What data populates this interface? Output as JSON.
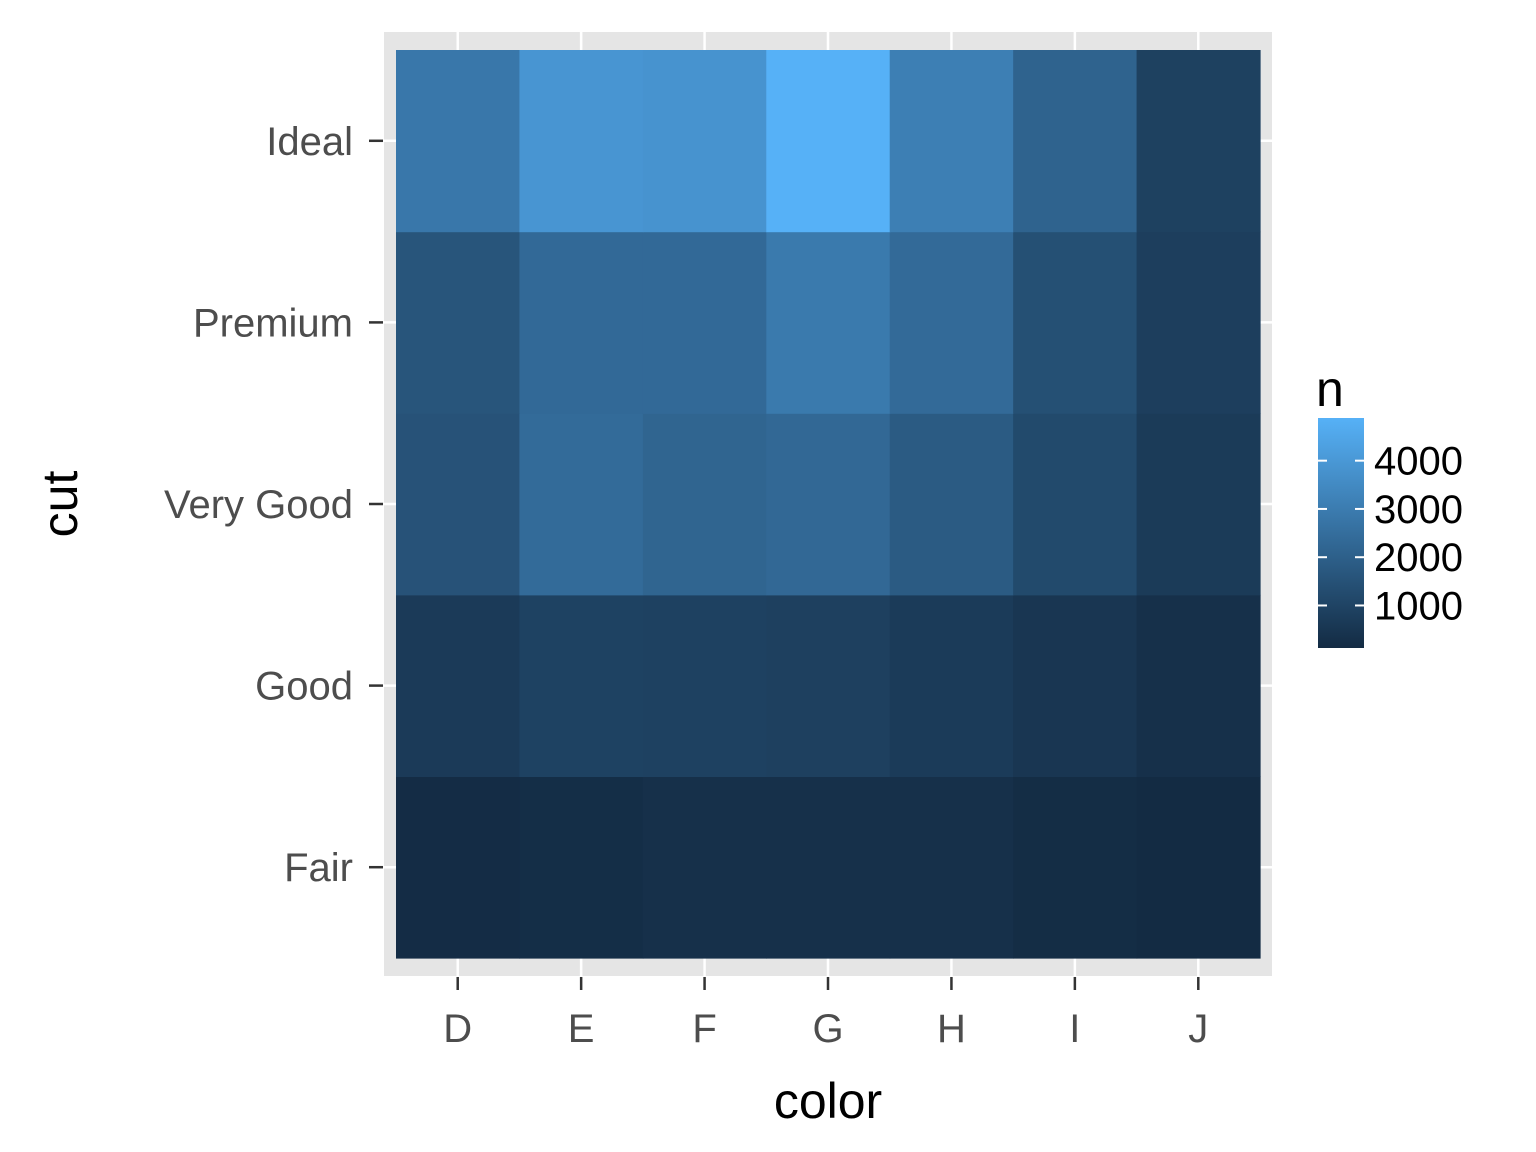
{
  "chart_data": {
    "type": "heatmap",
    "title": "",
    "xlabel": "color",
    "ylabel": "cut",
    "x_categories": [
      "D",
      "E",
      "F",
      "G",
      "H",
      "I",
      "J"
    ],
    "y_categories": [
      "Fair",
      "Good",
      "Very Good",
      "Premium",
      "Ideal"
    ],
    "values": [
      [
        163,
        224,
        312,
        314,
        303,
        175,
        119
      ],
      [
        662,
        933,
        909,
        871,
        702,
        522,
        307
      ],
      [
        1513,
        2400,
        2164,
        2299,
        1824,
        1204,
        678
      ],
      [
        1603,
        2337,
        2331,
        2924,
        2360,
        1428,
        808
      ],
      [
        2834,
        3903,
        3826,
        4884,
        3115,
        2093,
        896
      ]
    ],
    "legend": {
      "title": "n",
      "ticks": [
        1000,
        2000,
        3000,
        4000
      ],
      "tick_labels": [
        "1000",
        "2000",
        "3000",
        "4000"
      ],
      "range": [
        119,
        4884
      ],
      "low_color": "#132B43",
      "high_color": "#56B1F7",
      "position": "right"
    },
    "colors": {
      "panel_background": "#e5e5e5",
      "grid_line": "#ffffff",
      "tick_text": "#4d4d4d",
      "tick_mark": "#333333"
    },
    "grid": true
  }
}
